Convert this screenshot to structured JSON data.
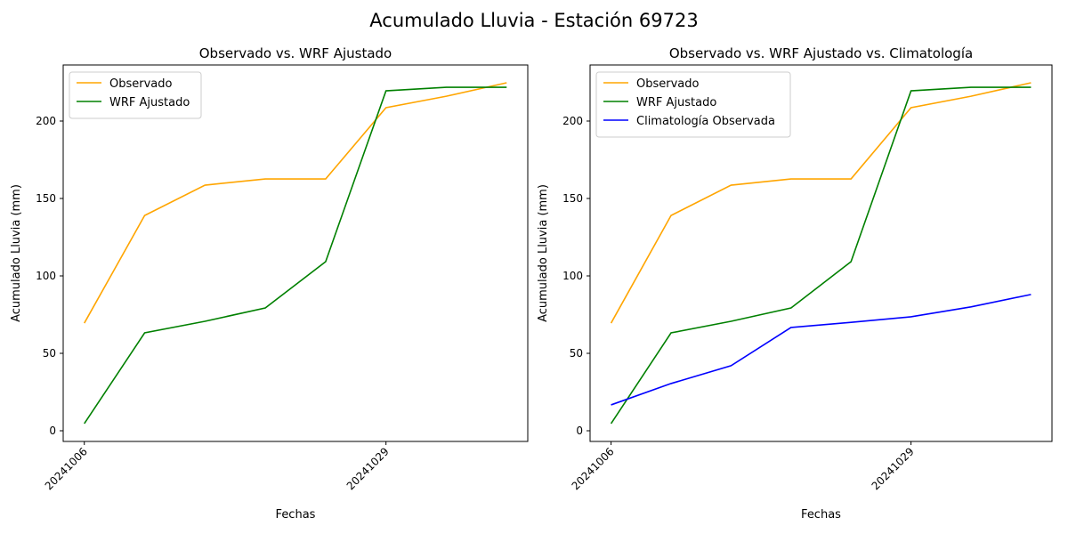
{
  "suptitle": "Acumulado Lluvia - Estación 69723",
  "chart_data": [
    {
      "type": "line",
      "title": "Observado vs. WRF Ajustado",
      "xlabel": "Fechas",
      "ylabel": "Acumulado Lluvia (mm)",
      "x": [
        0,
        1,
        2,
        3,
        4,
        5,
        6,
        7
      ],
      "xticks": [
        {
          "pos": 0,
          "label": "20241006"
        },
        {
          "pos": 5,
          "label": "20241029"
        }
      ],
      "yticks": [
        0,
        50,
        100,
        150,
        200
      ],
      "xlim": [
        -0.35,
        7.35
      ],
      "ylim": [
        -6.9,
        236.2
      ],
      "legend": "upper-left",
      "series": [
        {
          "name": "Observado",
          "color": "#ffa500",
          "values": [
            69.5,
            139,
            158.6,
            162.6,
            162.6,
            208.6,
            216,
            224.7
          ]
        },
        {
          "name": "WRF Ajustado",
          "color": "#008000",
          "values": [
            4.6,
            63.2,
            70.7,
            79.3,
            109.2,
            219.5,
            221.8,
            221.8
          ]
        }
      ]
    },
    {
      "type": "line",
      "title": "Observado vs. WRF Ajustado vs. Climatología",
      "xlabel": "Fechas",
      "ylabel": "Acumulado Lluvia (mm)",
      "x": [
        0,
        1,
        2,
        3,
        4,
        5,
        6,
        7
      ],
      "xticks": [
        {
          "pos": 0,
          "label": "20241006"
        },
        {
          "pos": 5,
          "label": "20241029"
        }
      ],
      "yticks": [
        0,
        50,
        100,
        150,
        200
      ],
      "xlim": [
        -0.35,
        7.35
      ],
      "ylim": [
        -6.9,
        236.2
      ],
      "legend": "upper-left",
      "series": [
        {
          "name": "Observado",
          "color": "#ffa500",
          "values": [
            69.5,
            139,
            158.6,
            162.6,
            162.6,
            208.6,
            216,
            224.7
          ]
        },
        {
          "name": "WRF Ajustado",
          "color": "#008000",
          "values": [
            4.6,
            63.2,
            70.7,
            79.3,
            109.2,
            219.5,
            221.8,
            221.8
          ]
        },
        {
          "name": "Climatología Observada",
          "color": "#0000ff",
          "values": [
            16.7,
            30.5,
            42,
            66.7,
            70,
            73.6,
            80,
            88
          ]
        }
      ]
    }
  ]
}
